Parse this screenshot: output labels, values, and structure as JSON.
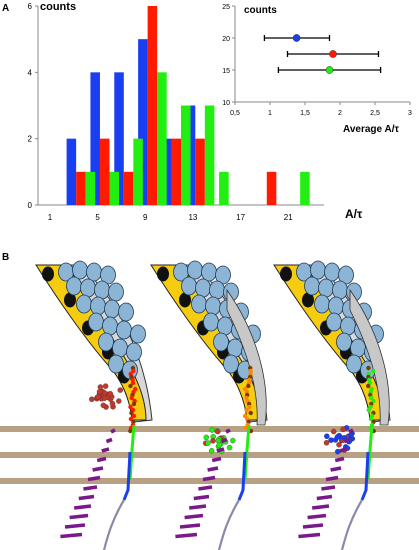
{
  "panels": {
    "a": "A",
    "b": "B"
  },
  "colors": {
    "blue": "#1a3ff0",
    "red": "#ff1a00",
    "green": "#22ee11",
    "membrane": "#b8a082",
    "cell_yellow": "#f5cc10",
    "vesicle": "#8cb4d4",
    "sheath": "#d8d8d8",
    "stripe": "#7a1a8a"
  },
  "chart_data": [
    {
      "type": "bar",
      "title": "",
      "ylabel": "counts",
      "xlabel": "A/τ",
      "ylim": [
        0,
        6
      ],
      "xlim": [
        0,
        24
      ],
      "y_ticks": [
        "0",
        "2",
        "4",
        "6"
      ],
      "x_ticks": [
        "1",
        "5",
        "9",
        "13",
        "17",
        "21"
      ],
      "x_tick_values": [
        1,
        5,
        9,
        13,
        17,
        21
      ],
      "bin_width": 0.8,
      "series": [
        {
          "color": "blue",
          "x": [
            2.8,
            4.8,
            6.8,
            8.8,
            10.8,
            12.8
          ],
          "values": [
            2,
            4,
            4,
            5,
            2,
            3
          ]
        },
        {
          "color": "red",
          "x": [
            3.6,
            5.6,
            7.6,
            9.6,
            11.6,
            13.6,
            19.6
          ],
          "values": [
            1,
            2,
            1,
            6,
            2,
            2,
            1
          ]
        },
        {
          "color": "green",
          "x": [
            4.4,
            6.4,
            8.4,
            10.4,
            12.4,
            14.4,
            15.6,
            22.4
          ],
          "values": [
            1,
            1,
            2,
            4,
            3,
            3,
            1,
            1
          ]
        }
      ]
    },
    {
      "type": "scatter",
      "title": "",
      "ylabel": "counts",
      "xlabel": "Average A/τ",
      "xlim": [
        0.5,
        3
      ],
      "ylim": [
        10,
        25
      ],
      "x_ticks": [
        "0,5",
        "1",
        "1,5",
        "2",
        "2,5",
        "3"
      ],
      "x_tick_values": [
        0.5,
        1,
        1.5,
        2,
        2.5,
        3
      ],
      "y_ticks": [
        "10",
        "15",
        "20",
        "25"
      ],
      "y_tick_values": [
        10,
        15,
        20,
        25
      ],
      "points": [
        {
          "color": "blue",
          "x": 1.38,
          "y": 20,
          "xerr": [
            0.92,
            1.85
          ]
        },
        {
          "color": "red",
          "x": 1.9,
          "y": 17.5,
          "xerr": [
            1.25,
            2.55
          ]
        },
        {
          "color": "green",
          "x": 1.85,
          "y": 15,
          "xerr": [
            1.12,
            2.58
          ]
        }
      ]
    }
  ]
}
